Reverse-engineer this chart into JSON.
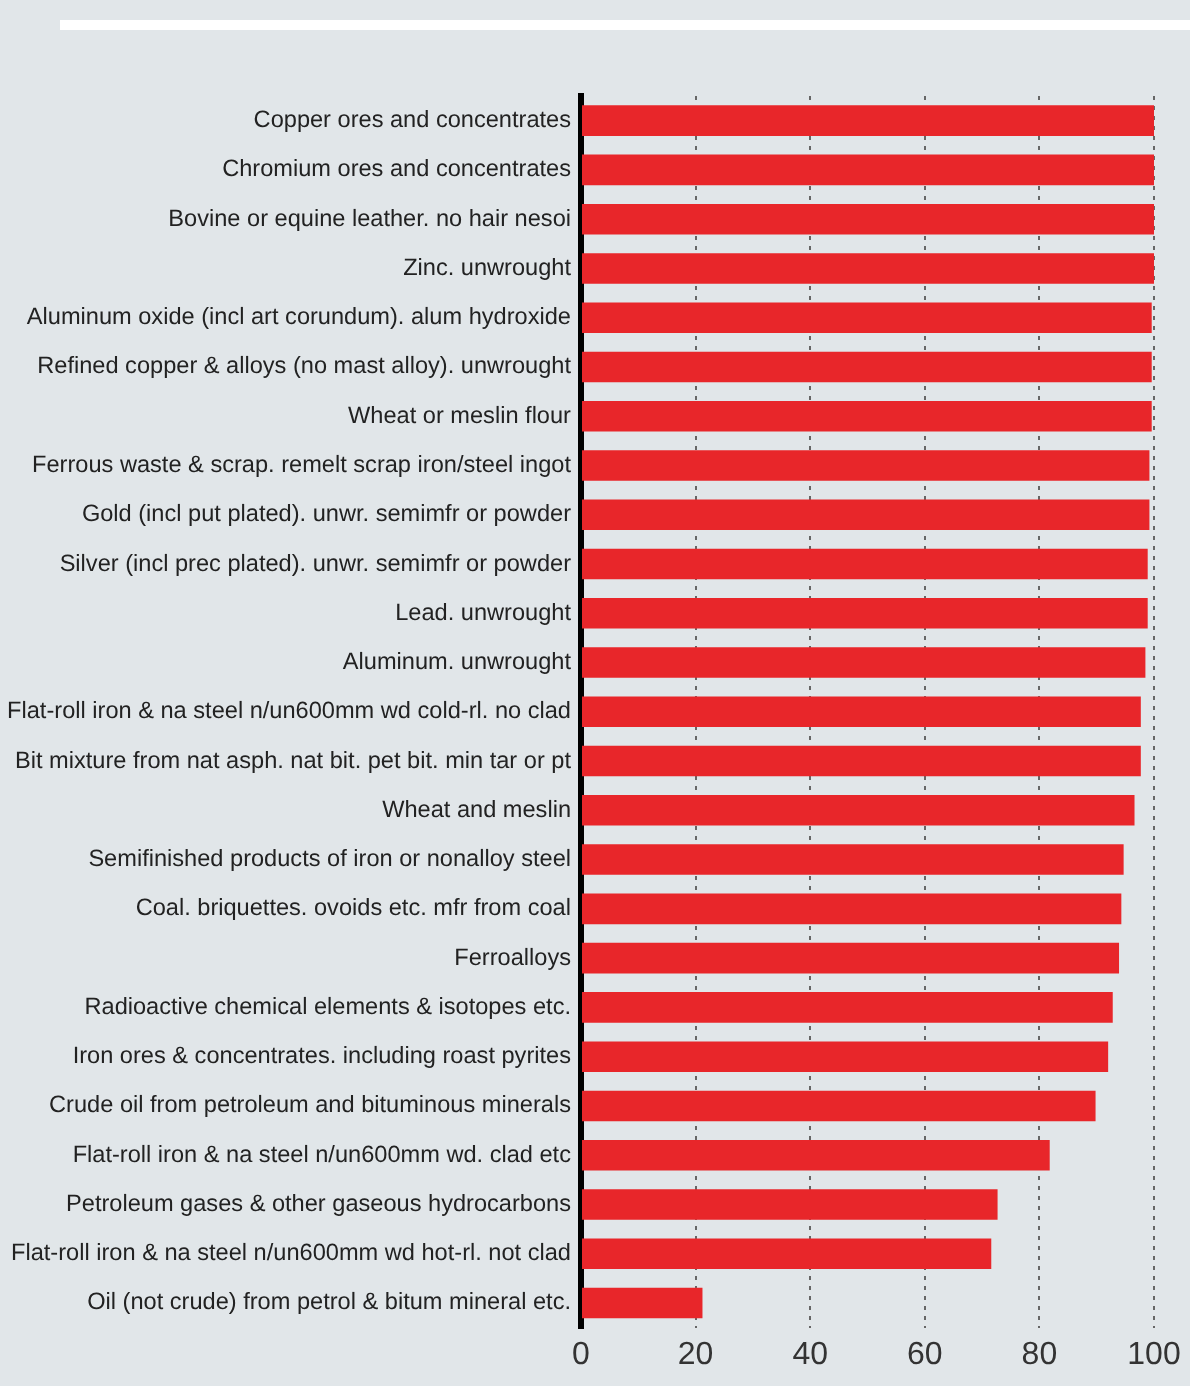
{
  "chart_data": {
    "type": "bar",
    "orientation": "horizontal",
    "categories": [
      "Copper ores and concentrates",
      "Chromium ores and concentrates",
      "Bovine or equine leather. no hair nesoi",
      "Zinc. unwrought",
      "Aluminum oxide (incl art corundum). alum hydroxide",
      "Refined copper & alloys (no mast alloy). unwrought",
      "Wheat or meslin flour",
      "Ferrous waste & scrap. remelt scrap iron/steel ingot",
      "Gold (incl put plated). unwr. semimfr or powder",
      "Silver (incl prec plated). unwr. semimfr or powder",
      "Lead. unwrought",
      "Aluminum. unwrought",
      "Flat-roll iron & na steel n/un600mm wd cold-rl. no clad",
      "Bit mixture from nat asph. nat bit. pet bit. min tar or pt",
      "Wheat and meslin",
      "Semifinished products of iron or nonalloy steel",
      "Coal. briquettes. ovoids etc. mfr from coal",
      "Ferroalloys",
      "Radioactive chemical elements & isotopes etc.",
      "Iron ores & concentrates. including roast pyrites",
      "Crude oil from petroleum and bituminous minerals",
      "Flat-roll iron & na steel n/un600mm wd. clad etc",
      "Petroleum gases & other gaseous hydrocarbons",
      "Flat-roll iron & na steel n/un600mm wd hot-rl. not clad",
      "Oil (not crude) from petrol & bitum mineral etc."
    ],
    "values": [
      100,
      100,
      100,
      100,
      99.6,
      99.6,
      99.6,
      99.2,
      99.2,
      98.9,
      98.9,
      98.5,
      97.7,
      97.7,
      96.6,
      94.7,
      94.3,
      93.9,
      92.8,
      92.0,
      89.8,
      81.8,
      72.7,
      71.6,
      21.2
    ],
    "color": "#e8262a",
    "xlim": [
      0,
      100
    ],
    "xticks": [
      0,
      20,
      40,
      60,
      80,
      100
    ],
    "grid": "x",
    "legend": false
  }
}
